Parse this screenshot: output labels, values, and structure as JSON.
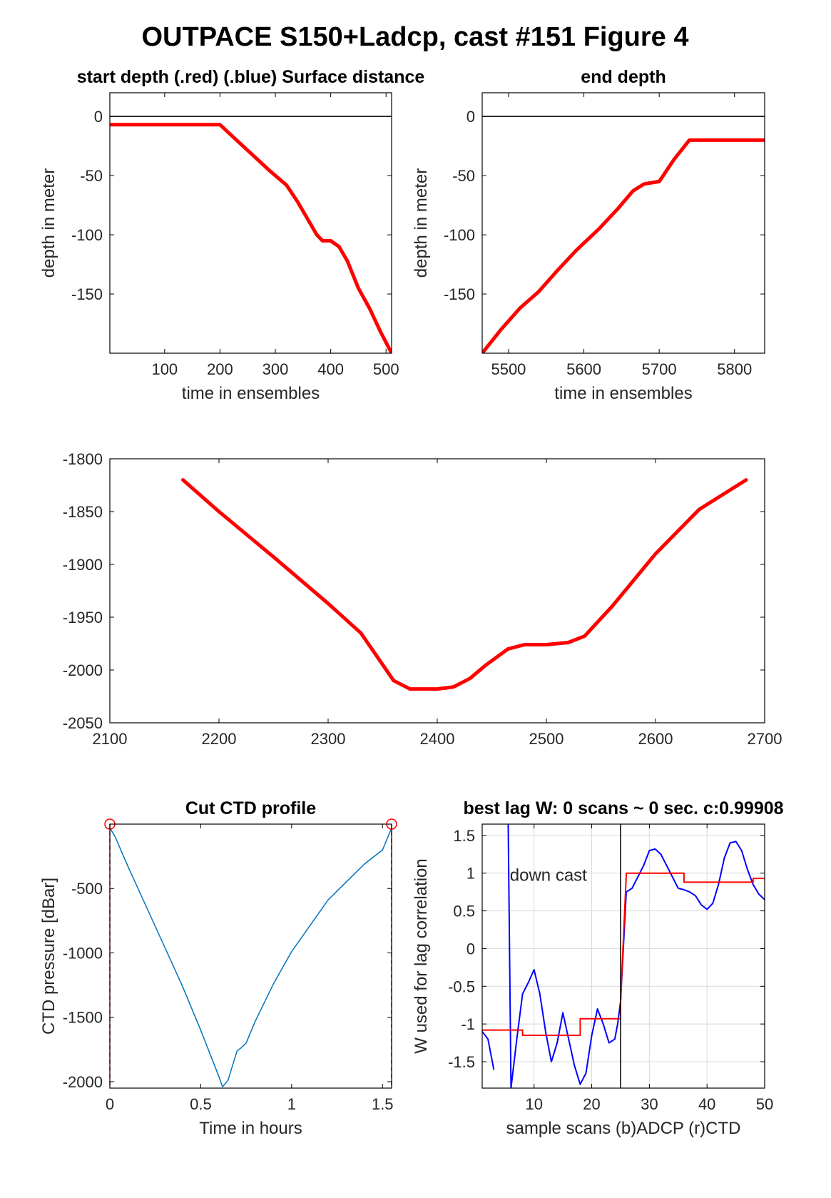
{
  "figure_title": "OUTPACE S150+Ladcp, cast #151    Figure 4",
  "colors": {
    "red": "#ff0000",
    "blue": "#0000ff",
    "ctd_blue": "#0072bd",
    "axis": "#000000"
  },
  "chart_data": [
    {
      "id": "start_depth",
      "type": "line",
      "title": "start depth (.red) (.blue) Surface distance",
      "xlabel": "time in ensembles",
      "ylabel": "depth in meter",
      "xlim": [
        1,
        510
      ],
      "ylim": [
        -200,
        20
      ],
      "xticks": [
        100,
        200,
        300,
        400,
        500
      ],
      "yticks": [
        0,
        -50,
        -100,
        -150
      ],
      "zero_line": true,
      "series": [
        {
          "color": "red",
          "x": [
            1,
            100,
            200,
            230,
            260,
            290,
            320,
            340,
            360,
            375,
            385,
            400,
            415,
            430,
            450,
            470,
            490,
            510
          ],
          "y": [
            -7,
            -7,
            -7,
            -20,
            -33,
            -46,
            -58,
            -72,
            -88,
            -100,
            -105,
            -105,
            -110,
            -122,
            -145,
            -162,
            -182,
            -200
          ]
        }
      ]
    },
    {
      "id": "end_depth",
      "type": "line",
      "title": "end depth",
      "xlabel": "time in ensembles",
      "ylabel": "depth in meter",
      "xlim": [
        5465,
        5840
      ],
      "ylim": [
        -200,
        20
      ],
      "xticks": [
        5500,
        5600,
        5700,
        5800
      ],
      "yticks": [
        0,
        -50,
        -100,
        -150
      ],
      "zero_line": true,
      "series": [
        {
          "color": "red",
          "x": [
            5465,
            5490,
            5515,
            5540,
            5565,
            5590,
            5620,
            5645,
            5665,
            5680,
            5700,
            5720,
            5740,
            5780,
            5840
          ],
          "y": [
            -200,
            -180,
            -162,
            -148,
            -130,
            -113,
            -95,
            -78,
            -63,
            -57,
            -55,
            -36,
            -20,
            -20,
            -20
          ]
        }
      ]
    },
    {
      "id": "bottom_depth",
      "type": "line",
      "title": "",
      "xlabel": "",
      "ylabel": "",
      "xlim": [
        2100,
        2700
      ],
      "ylim": [
        -2050,
        -1800
      ],
      "xticks": [
        2100,
        2200,
        2300,
        2400,
        2500,
        2600,
        2700
      ],
      "yticks": [
        -1800,
        -1850,
        -1900,
        -1950,
        -2000,
        -2050
      ],
      "series": [
        {
          "color": "red",
          "x": [
            2167,
            2200,
            2250,
            2300,
            2330,
            2360,
            2375,
            2400,
            2415,
            2430,
            2445,
            2465,
            2480,
            2500,
            2520,
            2535,
            2560,
            2600,
            2640,
            2683
          ],
          "y": [
            -1820,
            -1850,
            -1893,
            -1937,
            -1965,
            -2010,
            -2018,
            -2018,
            -2016,
            -2008,
            -1995,
            -1980,
            -1976,
            -1976,
            -1974,
            -1968,
            -1940,
            -1890,
            -1848,
            -1820
          ]
        }
      ]
    },
    {
      "id": "cut_ctd",
      "type": "line",
      "title": "Cut CTD profile",
      "xlabel": "Time in hours",
      "ylabel": "CTD pressure [dBar]",
      "xlim": [
        0,
        1.55
      ],
      "ylim": [
        -2050,
        0
      ],
      "xticks": [
        0,
        0.5,
        1,
        1.5
      ],
      "xticklabels": [
        "0",
        "0.5",
        "1",
        "1.5"
      ],
      "yticks": [
        -500,
        -1000,
        -1500,
        -2000
      ],
      "markers": [
        {
          "x": 0,
          "y": 0
        },
        {
          "x": 1.55,
          "y": 0
        }
      ],
      "series": [
        {
          "color": "ctd_blue",
          "x": [
            0,
            0.03,
            0.06,
            0.1,
            0.2,
            0.3,
            0.4,
            0.5,
            0.6,
            0.62,
            0.65,
            0.7,
            0.72,
            0.75,
            0.8,
            0.9,
            1.0,
            1.1,
            1.2,
            1.3,
            1.4,
            1.5,
            1.55
          ],
          "y": [
            -30,
            -100,
            -200,
            -330,
            -640,
            -950,
            -1260,
            -1600,
            -1960,
            -2040,
            -1990,
            -1760,
            -1740,
            -1700,
            -1530,
            -1240,
            -990,
            -790,
            -590,
            -450,
            -310,
            -200,
            -30
          ]
        }
      ]
    },
    {
      "id": "best_lag",
      "type": "line",
      "title": "best lag W: 0 scans ~ 0 sec.  c:0.99908",
      "xlabel": "sample scans (b)ADCP (r)CTD",
      "ylabel": "W used for lag correlation",
      "xlim": [
        1,
        50
      ],
      "ylim": [
        -1.85,
        1.65
      ],
      "xticks": [
        10,
        20,
        30,
        40,
        50
      ],
      "yticks": [
        1.5,
        1,
        0.5,
        0,
        -0.5,
        -1,
        -1.5
      ],
      "yticklabels": [
        "1.5",
        "1",
        "0.5",
        "0",
        "-0.5",
        "-1",
        "-1.5"
      ],
      "grid": true,
      "vline": 25,
      "annotation": "down cast",
      "series": [
        {
          "name": "ADCP",
          "color": "blue",
          "x": [
            1,
            2,
            3,
            4,
            5,
            5.5,
            6,
            7,
            8,
            9,
            10,
            11,
            12,
            13,
            14,
            15,
            16,
            17,
            18,
            19,
            20,
            21,
            22,
            23,
            24,
            24.5,
            25,
            26,
            27,
            28,
            29,
            30,
            31,
            32,
            33,
            34,
            35,
            36,
            37,
            38,
            39,
            40,
            41,
            42,
            43,
            44,
            45,
            46,
            47,
            48,
            49,
            50
          ],
          "y": [
            -1.1,
            -1.2,
            -1.6,
            null,
            null,
            1.7,
            -1.85,
            -1.2,
            -0.6,
            -0.45,
            -0.28,
            -0.6,
            -1.1,
            -1.5,
            -1.25,
            -0.85,
            -1.2,
            -1.55,
            -1.8,
            -1.65,
            -1.15,
            -0.8,
            -1.0,
            -1.25,
            -1.2,
            -1.0,
            -0.7,
            0.75,
            0.8,
            0.95,
            1.1,
            1.3,
            1.32,
            1.25,
            1.1,
            0.95,
            0.8,
            0.78,
            0.75,
            0.7,
            0.58,
            0.52,
            0.6,
            0.85,
            1.2,
            1.4,
            1.42,
            1.3,
            1.05,
            0.85,
            0.72,
            0.65
          ]
        },
        {
          "name": "CTD",
          "color": "red",
          "x": [
            1,
            8,
            8,
            18,
            18,
            25,
            25,
            26,
            26,
            36,
            36,
            48,
            48,
            50
          ],
          "y": [
            -1.08,
            -1.08,
            -1.15,
            -1.15,
            -0.93,
            -0.93,
            -0.7,
            0.98,
            1.0,
            1.0,
            0.88,
            0.88,
            0.93,
            0.93
          ]
        }
      ]
    }
  ]
}
